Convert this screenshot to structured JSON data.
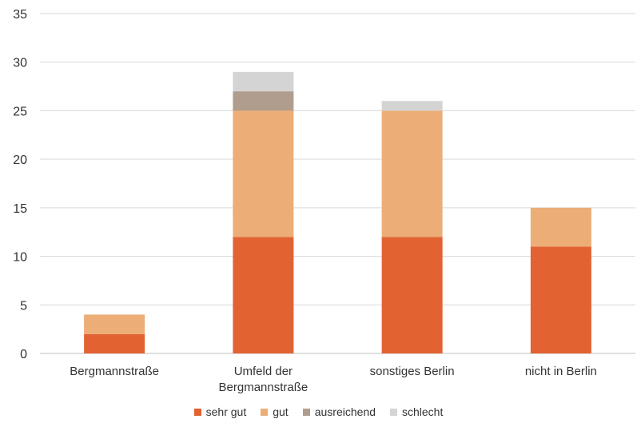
{
  "chart_data": {
    "type": "bar",
    "stacked": true,
    "categories": [
      [
        "Bergmannstraße"
      ],
      [
        "Umfeld der",
        "Bergmannstraße"
      ],
      [
        "sonstiges Berlin"
      ],
      [
        "nicht in Berlin"
      ]
    ],
    "series": [
      {
        "name": "sehr gut",
        "color": "#E26232",
        "values": [
          2,
          12,
          12,
          11
        ]
      },
      {
        "name": "gut",
        "color": "#ECAE76",
        "values": [
          2,
          13,
          13,
          4
        ]
      },
      {
        "name": "ausreichend",
        "color": "#B09D8D",
        "values": [
          0,
          2,
          0,
          0
        ]
      },
      {
        "name": "schlecht",
        "color": "#D4D4D4",
        "values": [
          0,
          2,
          1,
          0
        ]
      }
    ],
    "ylim": [
      0,
      35
    ],
    "yticks": [
      0,
      5,
      10,
      15,
      20,
      25,
      30,
      35
    ],
    "grid": true,
    "legend_position": "bottom"
  }
}
